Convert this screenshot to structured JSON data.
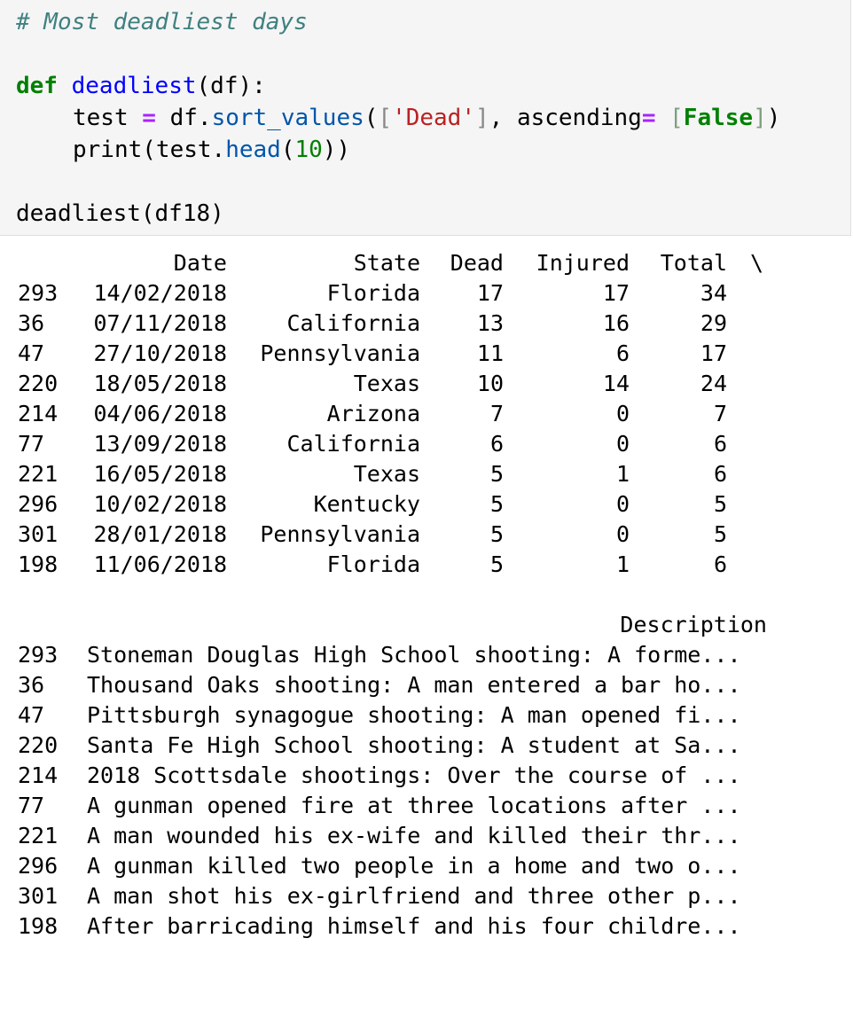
{
  "code": {
    "comment": "# Most deadliest days",
    "def_kw": "def",
    "func_name": "deadliest",
    "func_args": "(df):",
    "line2_var": "test",
    "line2_eq": "=",
    "line2_obj": "df.",
    "line2_method": "sort_values",
    "line2_open": "(",
    "line2_lbr": "[",
    "line2_str": "'Dead'",
    "line2_rbr": "]",
    "line2_sep": ", ascending",
    "line2_eq2": "=",
    "line2_sp": " ",
    "line2_lbr2": "[",
    "line2_false": "False",
    "line2_rbr2": "]",
    "line2_close": ")",
    "line3_print": "print(test.",
    "line3_method": "head",
    "line3_open": "(",
    "line3_num": "10",
    "line3_close": "))",
    "call_line": "deadliest(df18)"
  },
  "output": {
    "headers": {
      "date": "Date",
      "state": "State",
      "dead": "Dead",
      "injured": "Injured",
      "total": "Total",
      "continuation": "\\"
    },
    "rows": [
      {
        "idx": "293",
        "date": "14/02/2018",
        "state": "Florida",
        "dead": "17",
        "injured": "17",
        "total": "34"
      },
      {
        "idx": "36",
        "date": "07/11/2018",
        "state": "California",
        "dead": "13",
        "injured": "16",
        "total": "29"
      },
      {
        "idx": "47",
        "date": "27/10/2018",
        "state": "Pennsylvania",
        "dead": "11",
        "injured": "6",
        "total": "17"
      },
      {
        "idx": "220",
        "date": "18/05/2018",
        "state": "Texas",
        "dead": "10",
        "injured": "14",
        "total": "24"
      },
      {
        "idx": "214",
        "date": "04/06/2018",
        "state": "Arizona",
        "dead": "7",
        "injured": "0",
        "total": "7"
      },
      {
        "idx": "77",
        "date": "13/09/2018",
        "state": "California",
        "dead": "6",
        "injured": "0",
        "total": "6"
      },
      {
        "idx": "221",
        "date": "16/05/2018",
        "state": "Texas",
        "dead": "5",
        "injured": "1",
        "total": "6"
      },
      {
        "idx": "296",
        "date": "10/02/2018",
        "state": "Kentucky",
        "dead": "5",
        "injured": "0",
        "total": "5"
      },
      {
        "idx": "301",
        "date": "28/01/2018",
        "state": "Pennsylvania",
        "dead": "5",
        "injured": "0",
        "total": "5"
      },
      {
        "idx": "198",
        "date": "11/06/2018",
        "state": "Florida",
        "dead": "5",
        "injured": "1",
        "total": "6"
      }
    ],
    "desc_header": "Description",
    "desc_rows": [
      {
        "idx": "293",
        "text": "Stoneman Douglas High School shooting: A forme..."
      },
      {
        "idx": "36",
        "text": "Thousand Oaks shooting: A man entered a bar ho..."
      },
      {
        "idx": "47",
        "text": "Pittsburgh synagogue shooting: A man opened fi..."
      },
      {
        "idx": "220",
        "text": "Santa Fe High School shooting: A student at Sa..."
      },
      {
        "idx": "214",
        "text": "2018 Scottsdale shootings: Over the course of ..."
      },
      {
        "idx": "77",
        "text": "A gunman opened fire at three locations after ..."
      },
      {
        "idx": "221",
        "text": "A man wounded his ex-wife and killed their thr..."
      },
      {
        "idx": "296",
        "text": "A gunman killed two people in a home and two o..."
      },
      {
        "idx": "301",
        "text": "A man shot his ex-girlfriend and three other p..."
      },
      {
        "idx": "198",
        "text": "After barricading himself and his four childre..."
      }
    ]
  }
}
